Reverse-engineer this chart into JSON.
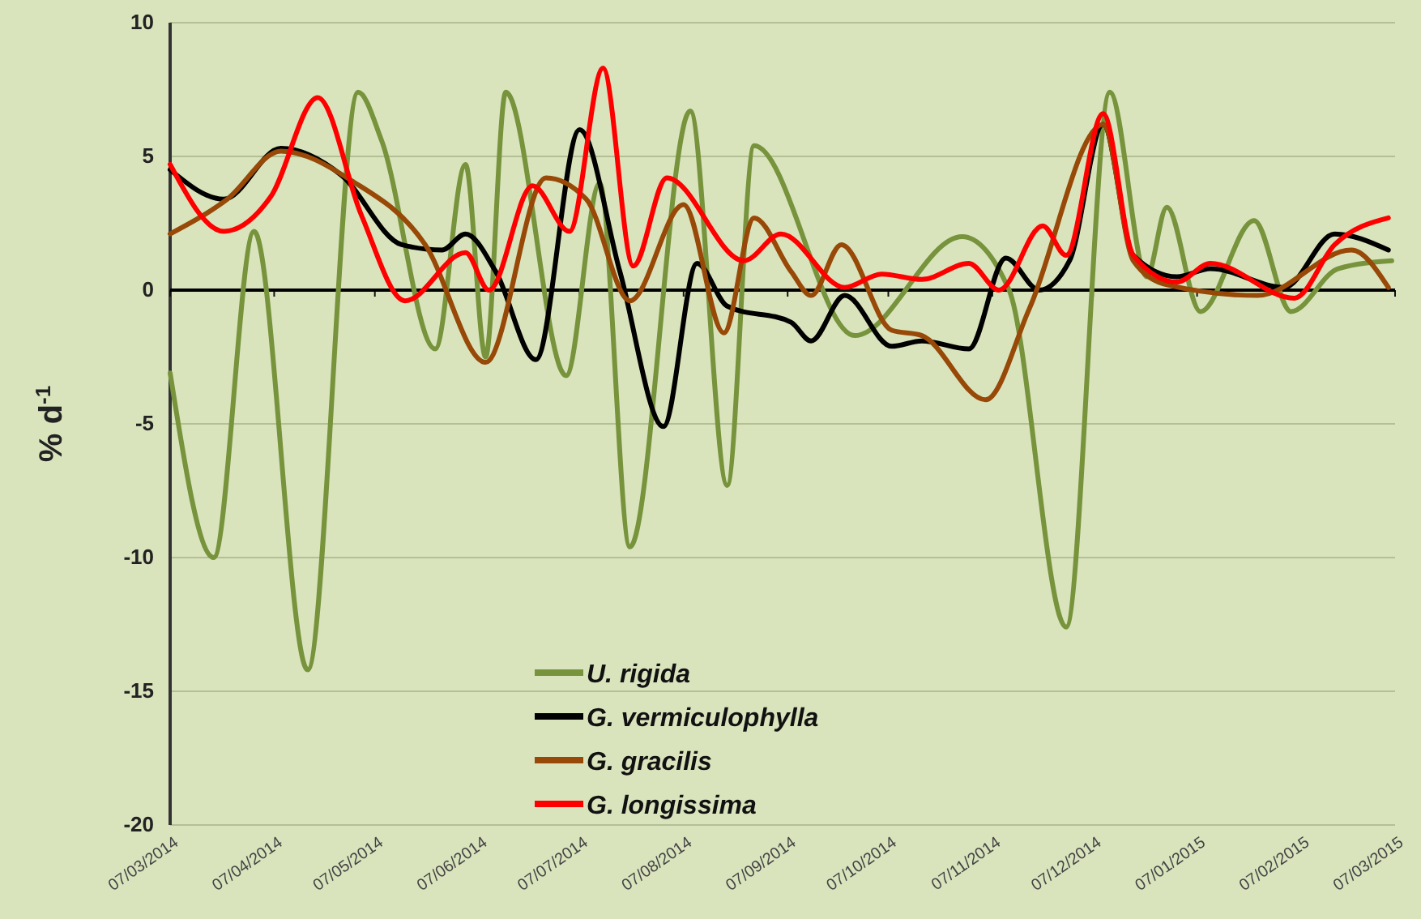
{
  "chart_data": {
    "type": "line",
    "ylabel": "% d$^{-1}$",
    "xlim": [
      "2014-03-07",
      "2015-03-07"
    ],
    "ylim": [
      -20,
      10
    ],
    "yticks": [
      -20,
      -15,
      -10,
      -5,
      0,
      5,
      10
    ],
    "xticks": [
      {
        "value": "2014-03-07",
        "label": "07/03/2014"
      },
      {
        "value": "2014-04-07",
        "label": "07/04/2014"
      },
      {
        "value": "2014-05-07",
        "label": "07/05/2014"
      },
      {
        "value": "2014-06-07",
        "label": "07/06/2014"
      },
      {
        "value": "2014-07-07",
        "label": "07/07/2014"
      },
      {
        "value": "2014-08-07",
        "label": "07/08/2014"
      },
      {
        "value": "2014-09-07",
        "label": "07/09/2014"
      },
      {
        "value": "2014-10-07",
        "label": "07/10/2014"
      },
      {
        "value": "2014-11-07",
        "label": "07/11/2014"
      },
      {
        "value": "2014-12-07",
        "label": "07/12/2014"
      },
      {
        "value": "2015-01-07",
        "label": "07/01/2015"
      },
      {
        "value": "2015-02-07",
        "label": "07/02/2015"
      },
      {
        "value": "2015-03-07",
        "label": "07/03/2015"
      }
    ],
    "ref_lines": [
      {
        "axis": "y",
        "value": 0,
        "color": "#000000"
      }
    ],
    "grid": "y",
    "legend": "bottom",
    "marker": "none",
    "line_style": "solid",
    "series": [
      {
        "name": "U. rigida",
        "color": "#77933c",
        "x": [
          "2014-03-07",
          "2014-03-20",
          "2014-04-01",
          "2014-04-17",
          "2014-05-02",
          "2014-05-09",
          "2014-05-25",
          "2014-06-03",
          "2014-06-09",
          "2014-06-15",
          "2014-07-03",
          "2014-07-13",
          "2014-07-22",
          "2014-08-09",
          "2014-08-20",
          "2014-08-28",
          "2014-09-27",
          "2014-10-29",
          "2014-11-12",
          "2014-11-29",
          "2014-12-12",
          "2014-12-23",
          "2014-12-29",
          "2015-01-08",
          "2015-01-24",
          "2015-02-04",
          "2015-02-18",
          "2015-03-06"
        ],
        "values": [
          -3.1,
          -10.0,
          2.2,
          -14.2,
          7.4,
          5.6,
          -2.2,
          4.7,
          -2.5,
          7.4,
          -3.2,
          4.0,
          -9.6,
          6.7,
          -7.3,
          5.4,
          -1.7,
          2.0,
          0.0,
          -12.6,
          7.4,
          0.5,
          3.1,
          -0.8,
          2.6,
          -0.8,
          0.8,
          1.1
        ]
      },
      {
        "name": "G. vermiculophylla",
        "color": "#000000",
        "x": [
          "2014-03-07",
          "2014-03-23",
          "2014-04-09",
          "2014-04-27",
          "2014-05-15",
          "2014-05-27",
          "2014-06-03",
          "2014-06-12",
          "2014-06-24",
          "2014-07-07",
          "2014-07-19",
          "2014-08-01",
          "2014-08-11",
          "2014-08-20",
          "2014-09-08",
          "2014-09-14",
          "2014-09-24",
          "2014-10-08",
          "2014-10-17",
          "2014-10-31",
          "2014-11-11",
          "2014-11-21",
          "2014-11-30",
          "2014-12-10",
          "2014-12-19",
          "2015-01-01",
          "2015-01-11",
          "2015-02-02",
          "2015-02-17",
          "2015-03-05"
        ],
        "values": [
          4.5,
          3.4,
          5.3,
          4.3,
          1.7,
          1.5,
          2.1,
          0.7,
          -2.6,
          6.0,
          0.7,
          -5.1,
          1.0,
          -0.6,
          -1.2,
          -1.9,
          -0.2,
          -2.1,
          -1.9,
          -2.2,
          1.2,
          0.0,
          1.1,
          6.2,
          1.3,
          0.5,
          0.8,
          0.1,
          2.1,
          1.5
        ]
      },
      {
        "name": "G. gracilis",
        "color": "#984807",
        "x": [
          "2014-03-07",
          "2014-03-24",
          "2014-04-09",
          "2014-04-30",
          "2014-05-22",
          "2014-06-09",
          "2014-06-27",
          "2014-07-09",
          "2014-07-22",
          "2014-08-07",
          "2014-08-19",
          "2014-08-28",
          "2014-09-08",
          "2014-09-14",
          "2014-09-23",
          "2014-10-08",
          "2014-10-17",
          "2014-11-05",
          "2014-11-18",
          "2014-12-10",
          "2014-12-19",
          "2014-12-29",
          "2015-01-25",
          "2015-02-22",
          "2015-03-05"
        ],
        "values": [
          2.1,
          3.4,
          5.2,
          4.1,
          1.7,
          -2.7,
          4.2,
          3.4,
          -0.4,
          3.2,
          -1.6,
          2.7,
          0.7,
          -0.2,
          1.7,
          -1.5,
          -1.7,
          -4.1,
          -0.7,
          6.2,
          1.1,
          0.2,
          -0.2,
          1.5,
          0.1
        ]
      },
      {
        "name": "G. longissima",
        "color": "#ff0000",
        "x": [
          "2014-03-07",
          "2014-03-23",
          "2014-04-06",
          "2014-04-20",
          "2014-05-03",
          "2014-05-16",
          "2014-06-03",
          "2014-06-10",
          "2014-06-23",
          "2014-07-04",
          "2014-07-14",
          "2014-07-23",
          "2014-08-02",
          "2014-08-25",
          "2014-09-05",
          "2014-09-24",
          "2014-10-05",
          "2014-10-17",
          "2014-10-31",
          "2014-11-09",
          "2014-11-22",
          "2014-11-29",
          "2014-12-10",
          "2014-12-19",
          "2015-01-01",
          "2015-01-11",
          "2015-02-05",
          "2015-02-17",
          "2015-03-05"
        ],
        "values": [
          4.7,
          2.2,
          3.5,
          7.2,
          2.8,
          -0.4,
          1.4,
          0.0,
          3.9,
          2.2,
          8.3,
          0.9,
          4.2,
          1.1,
          2.1,
          0.1,
          0.6,
          0.4,
          1.0,
          0.0,
          2.4,
          1.3,
          6.6,
          1.3,
          0.3,
          1.0,
          -0.3,
          1.7,
          2.7
        ]
      }
    ]
  }
}
